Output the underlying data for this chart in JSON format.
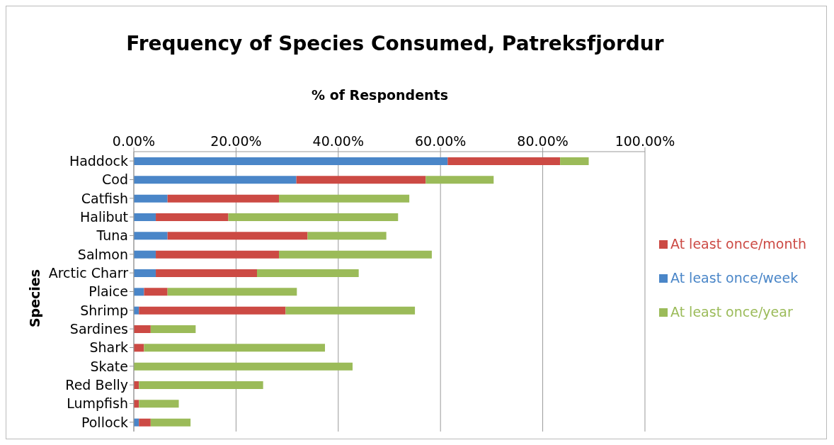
{
  "chart_data": {
    "type": "bar",
    "orientation": "horizontal",
    "stacked": true,
    "title": "Frequency of Species Consumed, Patreksfjordur",
    "xlabel": "% of Respondents",
    "ylabel": "Species",
    "categories": [
      "Haddock",
      "Cod",
      "Catfish",
      "Halibut",
      "Tuna",
      "Salmon",
      "Arctic Charr",
      "Plaice",
      "Shrimp",
      "Sardines",
      "Shark",
      "Skate",
      "Red Belly",
      "Lumpfish",
      "Pollock"
    ],
    "series": [
      {
        "name": "At least once/week",
        "color": "#4a86c8",
        "values": [
          61.4,
          31.8,
          6.6,
          4.3,
          6.6,
          4.3,
          4.3,
          2.0,
          1.0,
          0,
          0,
          0,
          0,
          0,
          1.0
        ]
      },
      {
        "name": "At least once/month",
        "color": "#cc4a44",
        "values": [
          22.0,
          25.3,
          21.8,
          14.2,
          27.4,
          24.1,
          19.8,
          4.6,
          28.7,
          3.3,
          2.0,
          0,
          1.0,
          1.0,
          2.3
        ]
      },
      {
        "name": "At least once/year",
        "color": "#9bbb59",
        "values": [
          5.6,
          13.3,
          25.5,
          33.2,
          15.4,
          29.9,
          19.9,
          25.3,
          25.3,
          8.8,
          35.4,
          42.8,
          24.3,
          7.8,
          7.8
        ]
      }
    ],
    "xlim": [
      0,
      100
    ],
    "xticks": [
      {
        "value": 0,
        "label": "0.00%"
      },
      {
        "value": 20,
        "label": "20.00%"
      },
      {
        "value": 40,
        "label": "40.00%"
      },
      {
        "value": 60,
        "label": "60.00%"
      },
      {
        "value": 80,
        "label": "80.00%"
      },
      {
        "value": 100,
        "label": "100.00%"
      }
    ],
    "grid": "x",
    "legend": "right"
  }
}
